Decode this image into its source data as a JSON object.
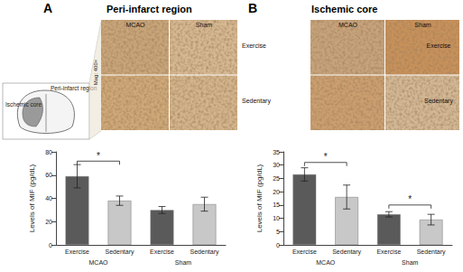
{
  "panels": [
    {
      "letter": "A",
      "title": "Peri-infarct region",
      "columns": [
        "MCAO",
        "Sham"
      ],
      "rows": [
        "Exercise",
        "Sedentary"
      ]
    },
    {
      "letter": "B",
      "title": "Ischemic core",
      "columns": [
        "MCAO",
        "Sham"
      ],
      "rows": [
        "Exercise",
        "Sedentary"
      ]
    }
  ],
  "schematic": {
    "labels": [
      "Peri-infarct region",
      "Ischemic core"
    ],
    "magnification": "Mag: 400×"
  },
  "chart_data": [
    {
      "type": "bar",
      "categories": [
        "Exercise",
        "Sedentary",
        "Exercise",
        "Sedentary"
      ],
      "groups": [
        "MCAO",
        "Sham"
      ],
      "values": [
        59,
        38,
        30,
        35
      ],
      "errors": [
        10,
        4,
        3,
        6
      ],
      "colors": [
        "#5a5a5a",
        "#c8c8c8",
        "#5a5a5a",
        "#c8c8c8"
      ],
      "y_label": "Levels of MIF (pg/dL)",
      "ylim": [
        0,
        80
      ],
      "yticks": [
        0,
        20,
        40,
        60,
        80
      ],
      "grid": false,
      "significance": [
        {
          "between": [
            0,
            1
          ],
          "y": 72,
          "label": "*"
        }
      ]
    },
    {
      "type": "bar",
      "categories": [
        "Exercise",
        "Sedentary",
        "Exercise",
        "Sedentary"
      ],
      "groups": [
        "MCAO",
        "Sham"
      ],
      "values": [
        26.5,
        18,
        11.5,
        9.5
      ],
      "errors": [
        2.5,
        4.5,
        1,
        2
      ],
      "colors": [
        "#5a5a5a",
        "#c8c8c8",
        "#5a5a5a",
        "#c8c8c8"
      ],
      "y_label": "Levels of MIF (pg/dL)",
      "ylim": [
        0,
        35
      ],
      "yticks": [
        0,
        5,
        10,
        15,
        20,
        25,
        30,
        35
      ],
      "grid": false,
      "significance": [
        {
          "between": [
            0,
            1
          ],
          "y": 31,
          "label": "*"
        },
        {
          "between": [
            2,
            3
          ],
          "y": 15,
          "label": "*"
        }
      ]
    }
  ]
}
